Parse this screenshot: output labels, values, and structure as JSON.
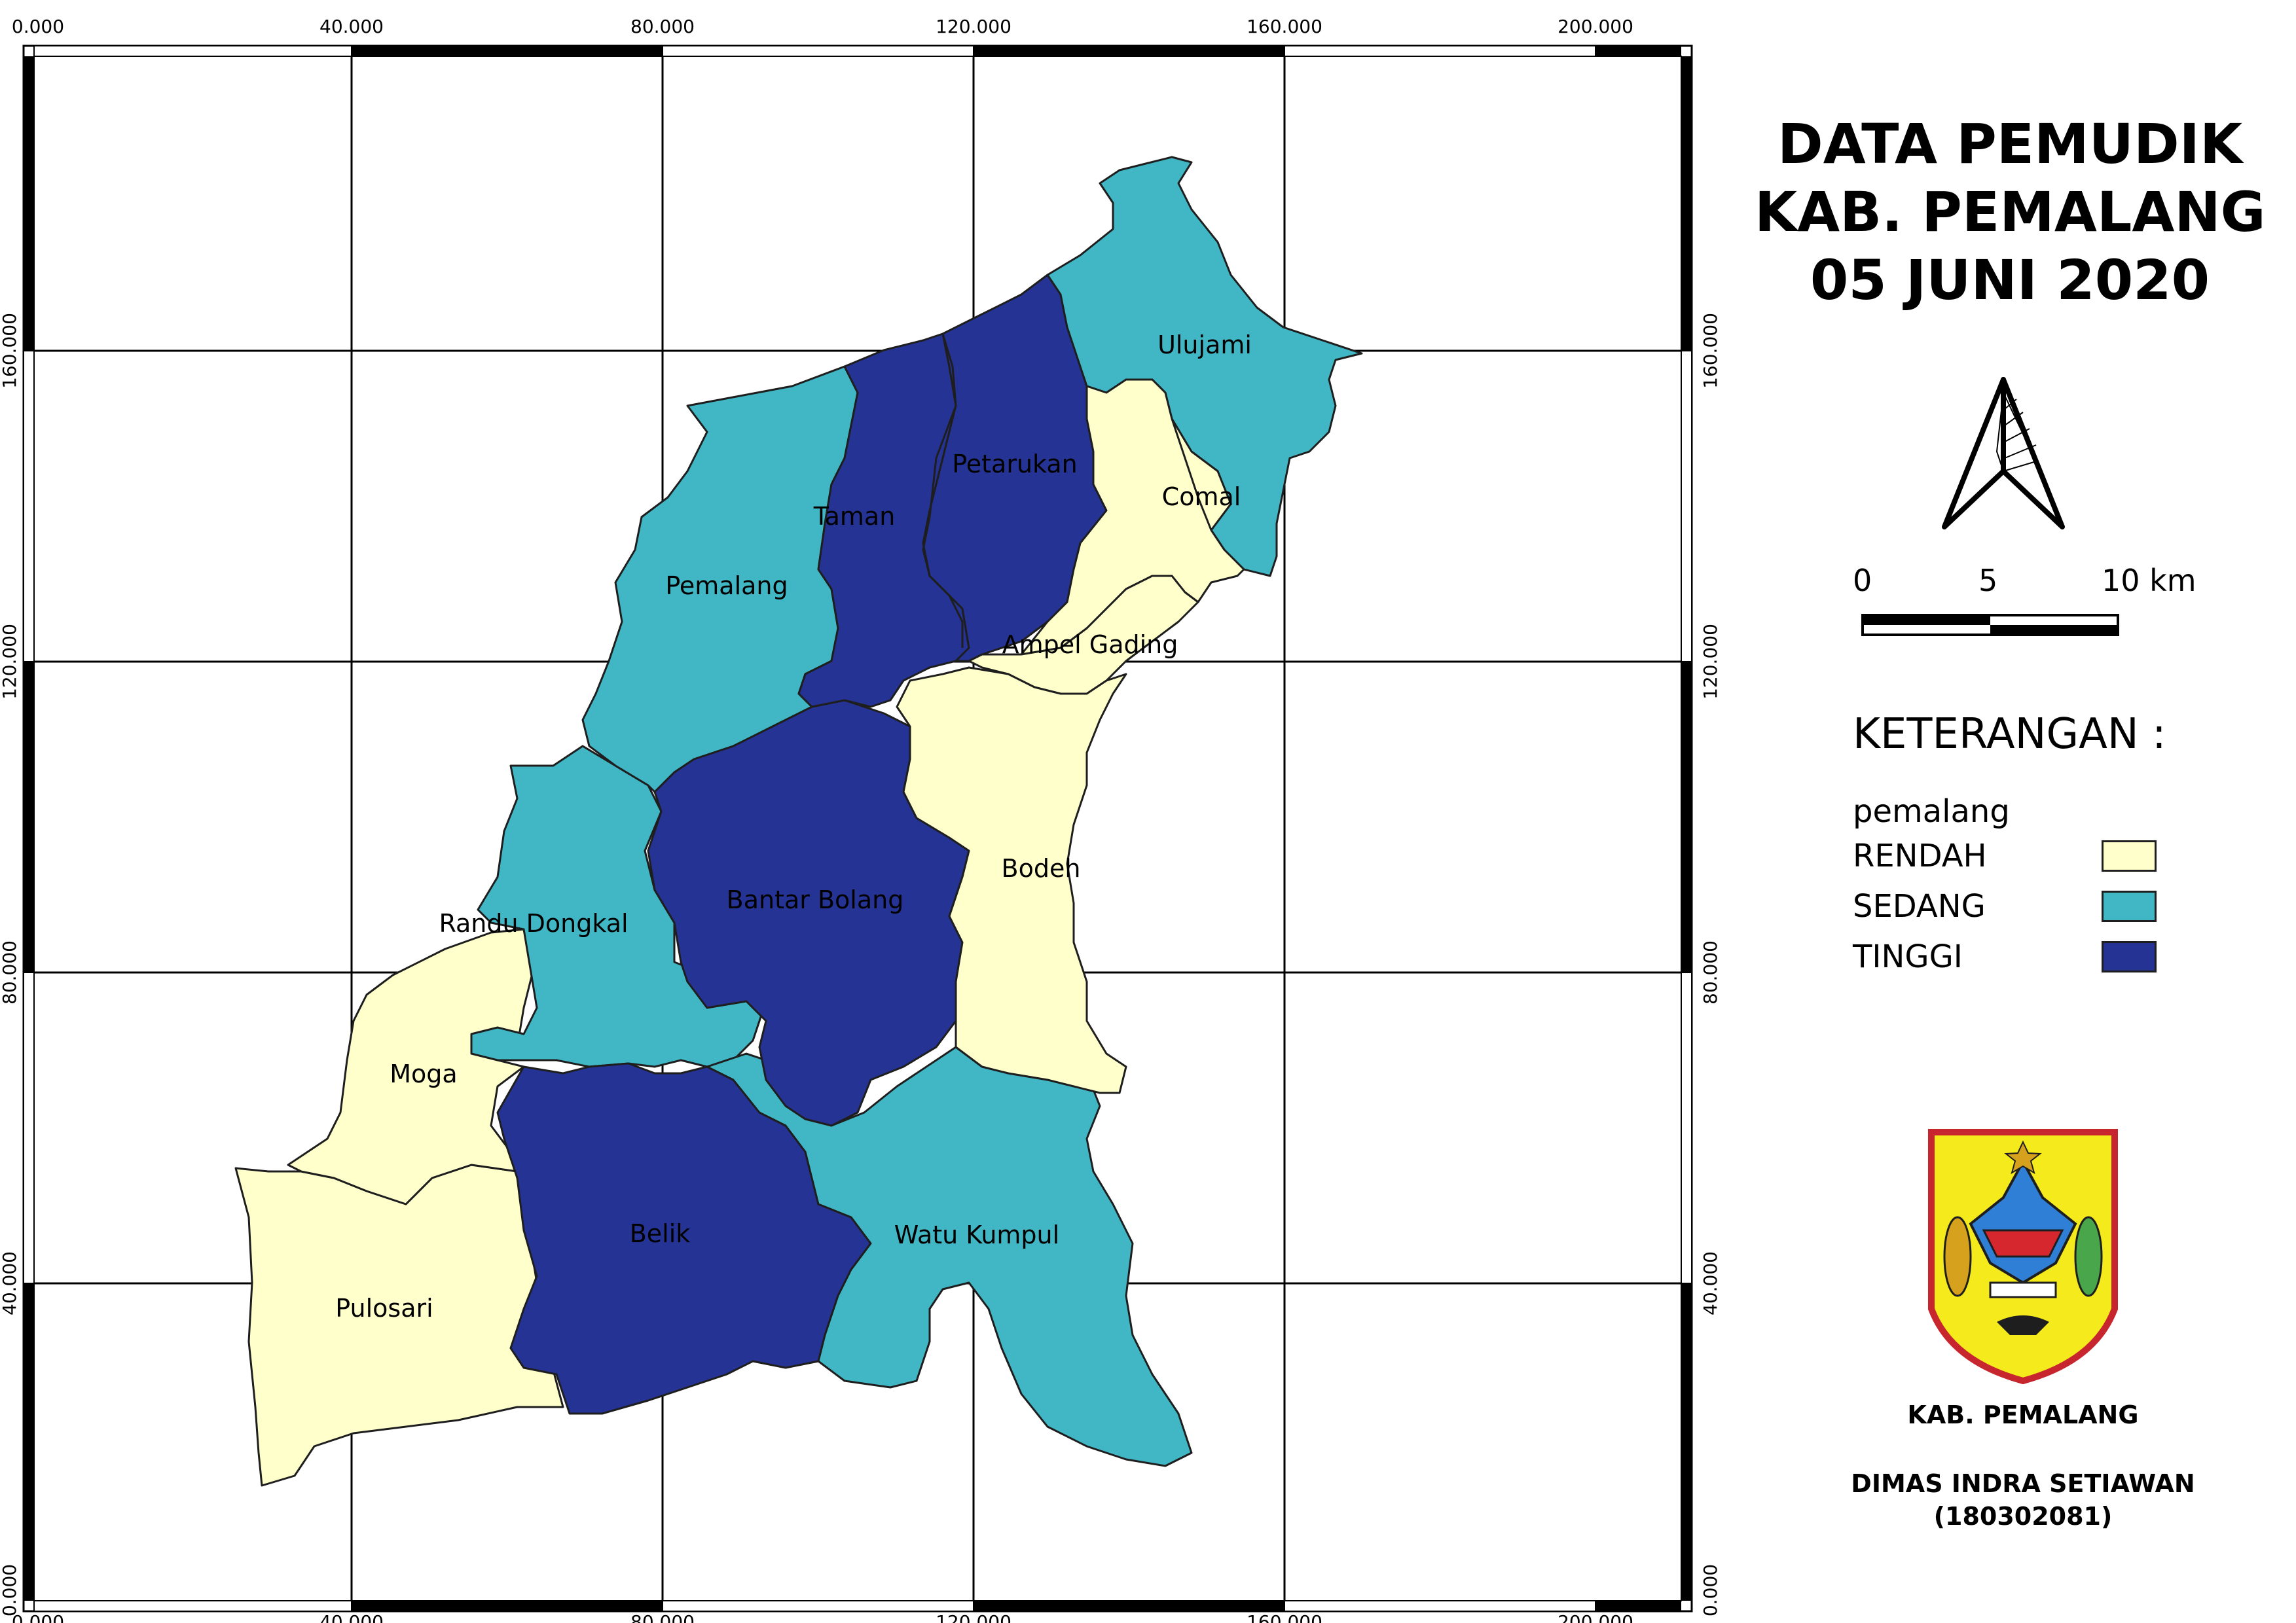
{
  "title": {
    "line1": "DATA PEMUDIK",
    "line2": "KAB. PEMALANG",
    "line3": "05 JUNI 2020"
  },
  "grid": {
    "x_labels": [
      "0.000",
      "40.000",
      "80.000",
      "120.000",
      "160.000",
      "200.000"
    ],
    "y_labels": [
      "0.000",
      "40.000",
      "80.000",
      "120.000",
      "160.000"
    ]
  },
  "scale_bar": {
    "labels": [
      "0",
      "5",
      "10 km"
    ]
  },
  "north_arrow": {
    "icon": "north-arrow-icon"
  },
  "legend": {
    "heading": "KETERANGAN :",
    "layer": "pemalang",
    "classes": [
      {
        "label": "RENDAH",
        "color": "#ffffcc"
      },
      {
        "label": "SEDANG",
        "color": "#41b6c4"
      },
      {
        "label": "TINGGI",
        "color": "#253494"
      }
    ]
  },
  "regions": [
    {
      "name": "Ulujami",
      "class": "SEDANG"
    },
    {
      "name": "Petarukan",
      "class": "TINGGI"
    },
    {
      "name": "Comal",
      "class": "RENDAH"
    },
    {
      "name": "Taman",
      "class": "TINGGI"
    },
    {
      "name": "Pemalang",
      "class": "SEDANG"
    },
    {
      "name": "Ampel Gading",
      "class": "RENDAH"
    },
    {
      "name": "Bodeh",
      "class": "RENDAH"
    },
    {
      "name": "Bantar Bolang",
      "class": "TINGGI"
    },
    {
      "name": "Randu Dongkal",
      "class": "SEDANG"
    },
    {
      "name": "Moga",
      "class": "RENDAH"
    },
    {
      "name": "Belik",
      "class": "TINGGI"
    },
    {
      "name": "Watu Kumpul",
      "class": "SEDANG"
    },
    {
      "name": "Pulosari",
      "class": "RENDAH"
    }
  ],
  "emblem": {
    "icon": "pemalang-emblem-icon",
    "caption": "KAB. PEMALANG"
  },
  "author": {
    "name": "DIMAS INDRA SETIAWAN",
    "id": "(180302081)"
  }
}
